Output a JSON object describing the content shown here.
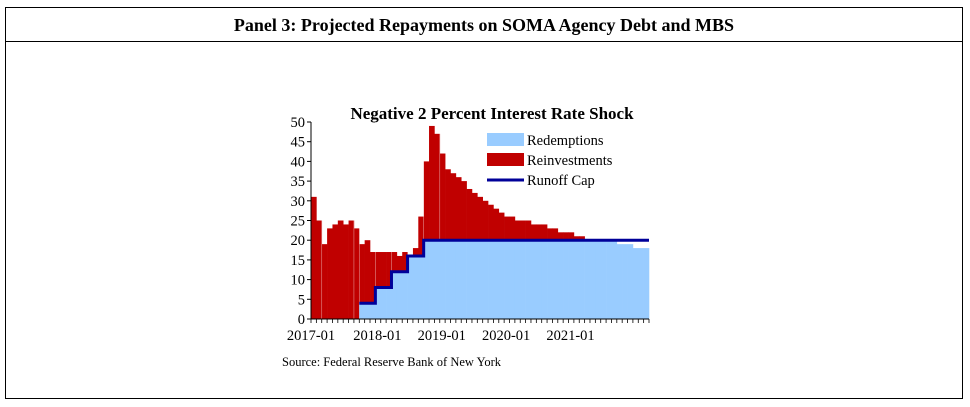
{
  "panel_title": "Panel 3: Projected Repayments on SOMA Agency Debt and MBS",
  "source": "Source: Federal Reserve Bank of New York",
  "colors": {
    "redemptions": "#99CCFF",
    "reinvestments": "#C00000",
    "runoff_cap": "#000099"
  },
  "chart_data": {
    "type": "bar",
    "stacked": true,
    "title": "Negative 2 Percent Interest Rate Shock",
    "xlabel": "",
    "ylabel": "",
    "ylim": [
      0,
      50
    ],
    "yticks": [
      0,
      5,
      10,
      15,
      20,
      25,
      30,
      35,
      40,
      45,
      50
    ],
    "x_tick_labels": [
      "2017-01",
      "2018-01",
      "2019-01",
      "2020-01",
      "2021-01"
    ],
    "start_month": "2017-01",
    "legend_position": "top-right",
    "grid": false,
    "total": [
      31,
      25,
      19,
      23,
      24,
      25,
      24,
      25,
      23,
      19,
      20,
      17,
      17,
      17,
      17,
      17,
      16,
      17,
      16,
      18,
      26,
      40,
      49,
      47,
      42,
      38,
      37,
      36,
      35,
      33,
      32,
      31,
      30,
      29,
      28,
      27,
      26,
      26,
      25,
      25,
      25,
      24,
      24,
      24,
      23,
      23,
      22,
      22,
      22,
      21,
      21,
      20,
      20,
      20,
      20,
      20,
      20,
      19,
      19,
      19,
      18,
      18,
      18
    ],
    "series": [
      {
        "name": "Redemptions",
        "values": [
          0,
          0,
          0,
          0,
          0,
          0,
          0,
          0,
          0,
          4,
          4,
          4,
          8,
          8,
          8,
          12,
          12,
          12,
          16,
          16,
          16,
          20,
          20,
          20,
          20,
          20,
          20,
          20,
          20,
          20,
          20,
          20,
          20,
          20,
          20,
          20,
          20,
          20,
          20,
          20,
          20,
          20,
          20,
          20,
          20,
          20,
          20,
          20,
          20,
          20,
          20,
          20,
          20,
          20,
          20,
          20,
          20,
          19,
          19,
          19,
          18,
          18,
          18
        ]
      },
      {
        "name": "Reinvestments",
        "values": [
          31,
          25,
          19,
          23,
          24,
          25,
          24,
          25,
          23,
          15,
          16,
          13,
          9,
          9,
          9,
          5,
          4,
          5,
          0,
          2,
          10,
          20,
          29,
          27,
          22,
          18,
          17,
          16,
          15,
          13,
          12,
          11,
          10,
          9,
          8,
          7,
          6,
          6,
          5,
          5,
          5,
          4,
          4,
          4,
          3,
          3,
          2,
          2,
          2,
          1,
          1,
          0,
          0,
          0,
          0,
          0,
          0,
          0,
          0,
          0,
          0,
          0,
          0
        ]
      },
      {
        "name": "Runoff Cap",
        "type": "line",
        "values": [
          null,
          null,
          null,
          null,
          null,
          null,
          null,
          null,
          null,
          4,
          4,
          4,
          8,
          8,
          8,
          12,
          12,
          12,
          16,
          16,
          16,
          20,
          20,
          20,
          20,
          20,
          20,
          20,
          20,
          20,
          20,
          20,
          20,
          20,
          20,
          20,
          20,
          20,
          20,
          20,
          20,
          20,
          20,
          20,
          20,
          20,
          20,
          20,
          20,
          20,
          20,
          20,
          20,
          20,
          20,
          20,
          20,
          20,
          20,
          20,
          20,
          20,
          20
        ]
      }
    ]
  }
}
